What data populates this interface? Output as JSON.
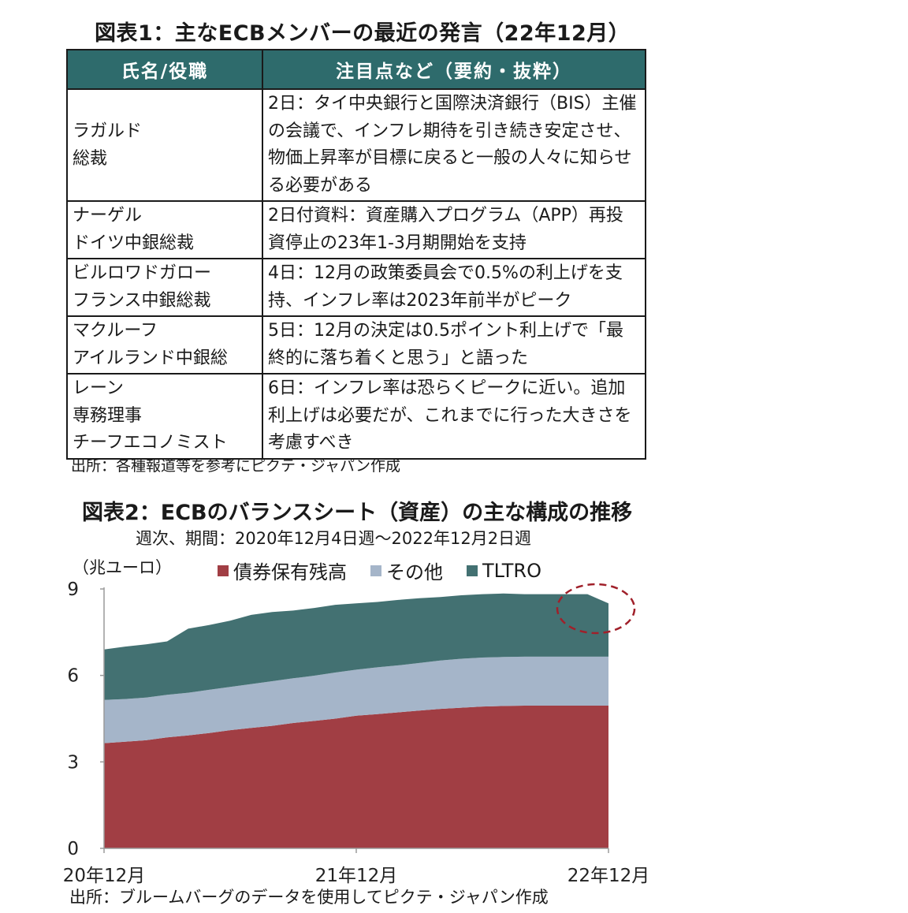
{
  "table_section": {
    "title": "図表1：主なECBメンバーの最近の発言（22年12月）",
    "headers": [
      "氏名/役職",
      "注目点など（要約・抜粋）"
    ],
    "rows": [
      {
        "name_lines": [
          "ラガルド",
          "総裁"
        ],
        "note": "2日：タイ中央銀行と国際決済銀行（BIS）主催の会議で、インフレ期待を引き続き安定させ、物価上昇率が目標に戻ると一般の人々に知らせる必要がある"
      },
      {
        "name_lines": [
          "ナーゲル",
          "ドイツ中銀総裁"
        ],
        "note": "2日付資料：資産購入プログラム（APP）再投資停止の23年1-3月期開始を支持"
      },
      {
        "name_lines": [
          "ビルロワドガロー",
          "フランス中銀総裁"
        ],
        "note": "4日：12月の政策委員会で0.5%の利上げを支持、インフレ率は2023年前半がピーク"
      },
      {
        "name_lines": [
          "マクルーフ",
          "アイルランド中銀総"
        ],
        "note": "5日：12月の決定は0.5ポイント利上げで「最終的に落ち着くと思う」と語った"
      },
      {
        "name_lines": [
          "レーン",
          "専務理事",
          "チーフエコノミスト"
        ],
        "note": "6日：インフレ率は恐らくピークに近い。追加利上げは必要だが、これまでに行った大きさを考慮すべき"
      }
    ],
    "source": "出所：各種報道等を参考にピクテ・ジャパン作成"
  },
  "chart_section": {
    "title": "図表2：ECBのバランスシート（資産）の主な構成の推移",
    "subtitle": "週次、期間：2020年12月4日週～2022年12月2日週",
    "unit_label": "（兆ユーロ）",
    "source": "出所：ブルームバーグのデータを使用してピクテ・ジャパン作成"
  },
  "chart_data": {
    "type": "area",
    "stacked": true,
    "x": [
      "20年12月",
      "21年1月",
      "21年2月",
      "21年3月",
      "21年4月",
      "21年5月",
      "21年6月",
      "21年7月",
      "21年8月",
      "21年9月",
      "21年10月",
      "21年11月",
      "21年12月",
      "22年1月",
      "22年2月",
      "22年3月",
      "22年4月",
      "22年5月",
      "22年6月",
      "22年7月",
      "22年8月",
      "22年9月",
      "22年10月",
      "22年11月",
      "22年12月"
    ],
    "x_tick_labels": [
      "20年12月",
      "21年12月",
      "22年12月"
    ],
    "ylim": [
      0,
      9
    ],
    "y_ticks": [
      0,
      3,
      6,
      9
    ],
    "legend_position": "top",
    "series": [
      {
        "name": "債券保有残高",
        "color": "#a13e44",
        "values": [
          3.65,
          3.7,
          3.75,
          3.85,
          3.92,
          4.0,
          4.1,
          4.18,
          4.25,
          4.35,
          4.42,
          4.5,
          4.6,
          4.66,
          4.72,
          4.78,
          4.84,
          4.88,
          4.92,
          4.94,
          4.95,
          4.95,
          4.95,
          4.95,
          4.95
        ]
      },
      {
        "name": "その他",
        "color": "#a5b5c9",
        "values": [
          1.5,
          1.48,
          1.48,
          1.48,
          1.48,
          1.5,
          1.5,
          1.52,
          1.55,
          1.55,
          1.57,
          1.6,
          1.6,
          1.62,
          1.63,
          1.65,
          1.68,
          1.7,
          1.7,
          1.7,
          1.7,
          1.7,
          1.7,
          1.7,
          1.7
        ]
      },
      {
        "name": "TLTRO",
        "color": "#437172",
        "values": [
          1.75,
          1.82,
          1.85,
          1.85,
          2.22,
          2.25,
          2.3,
          2.4,
          2.4,
          2.35,
          2.35,
          2.35,
          2.3,
          2.27,
          2.27,
          2.25,
          2.2,
          2.2,
          2.2,
          2.2,
          2.17,
          2.17,
          2.17,
          2.17,
          1.85
        ]
      }
    ]
  }
}
